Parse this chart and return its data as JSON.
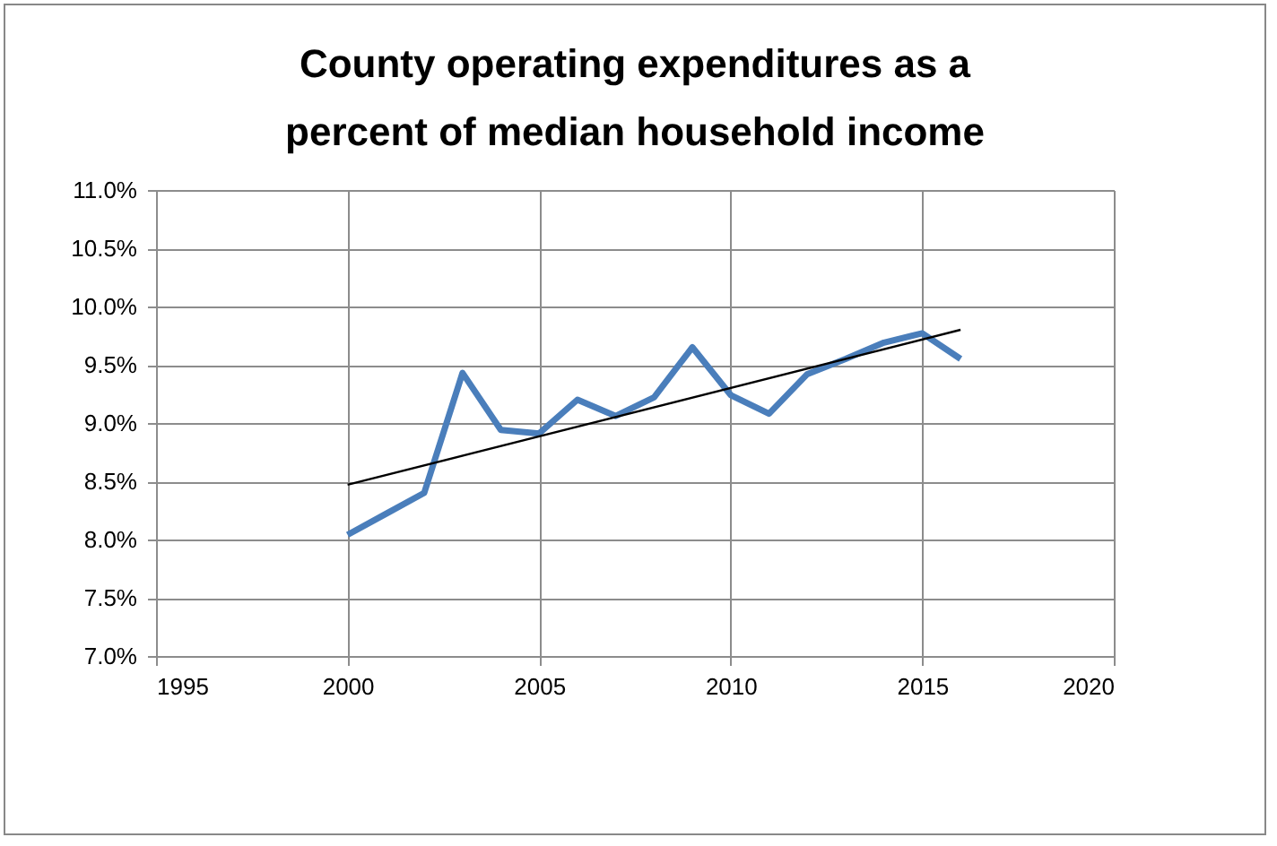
{
  "chart_data": {
    "type": "line",
    "title": "County operating expenditures as a percent of median household income",
    "series": [
      {
        "color": "#4a7ebb",
        "x": [
          2000,
          2001,
          2002,
          2003,
          2004,
          2005,
          2006,
          2007,
          2008,
          2009,
          2010,
          2011,
          2012,
          2013,
          2014,
          2015,
          2016
        ],
        "values": [
          8.04,
          8.22,
          8.4,
          9.43,
          8.94,
          8.91,
          9.2,
          9.06,
          9.22,
          9.65,
          9.24,
          9.08,
          9.42,
          9.55,
          9.69,
          9.77,
          9.55
        ]
      },
      {
        "type": "line",
        "color": "#000000",
        "x": [
          2000,
          2016
        ],
        "values": [
          8.47,
          9.8
        ]
      }
    ],
    "xlim": [
      1995,
      2020
    ],
    "xticks": [
      1995,
      2000,
      2005,
      2010,
      2015,
      2020
    ],
    "ylim": [
      7.0,
      11.0
    ],
    "yticks": [
      {
        "value": 7.0,
        "label": "7.0%"
      },
      {
        "value": 7.5,
        "label": "7.5%"
      },
      {
        "value": 8.0,
        "label": "8.0%"
      },
      {
        "value": 8.5,
        "label": "8.5%"
      },
      {
        "value": 9.0,
        "label": "9.0%"
      },
      {
        "value": 9.5,
        "label": "9.5%"
      },
      {
        "value": 10.0,
        "label": "10.0%"
      },
      {
        "value": 10.5,
        "label": "10.5%"
      },
      {
        "value": 11.0,
        "label": "11.0%"
      }
    ],
    "grid": true,
    "marker": "none"
  }
}
